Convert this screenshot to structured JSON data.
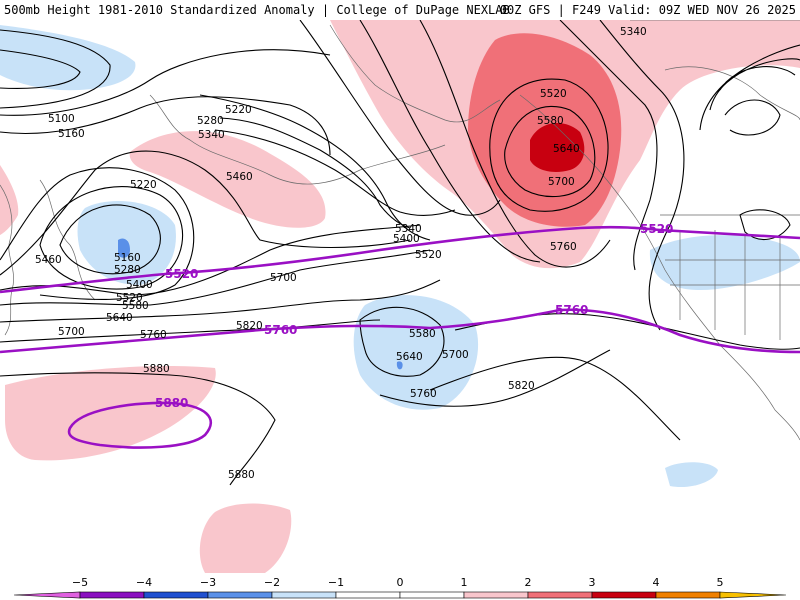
{
  "header": {
    "title": "500mb Height 1981-2010 Standardized Anomaly | College of DuPage NEXLAB",
    "run_info": "00Z GFS | F249 Valid: 09Z WED NOV 26 2025"
  },
  "contour_labels": {
    "5100": "5100",
    "5160": "5160",
    "5220": "5220",
    "5280": "5280",
    "5340": "5340",
    "5400": "5400",
    "5460": "5460",
    "5520": "5520",
    "5580": "5580",
    "5640": "5640",
    "5700": "5700",
    "5760": "5760",
    "5820": "5820",
    "5880": "5880"
  },
  "highlight_labels": {
    "h5520": "5520",
    "h5760": "5760",
    "h5880": "5880"
  },
  "colors": {
    "neg5": "#b000b0",
    "neg4": "#8a10c0",
    "neg3": "#2050d0",
    "neg2": "#5a90e8",
    "neg1": "#c8e2f8",
    "pos1": "#f9c6cc",
    "pos2": "#f07078",
    "pos3": "#c80010",
    "pos4": "#f08000",
    "pos5": "#f8c000",
    "highlight": "#9a10c4"
  },
  "colorbar": {
    "ticks": [
      "−5",
      "−4",
      "−3",
      "−2",
      "−1",
      "0",
      "1",
      "2",
      "3",
      "4",
      "5"
    ]
  }
}
